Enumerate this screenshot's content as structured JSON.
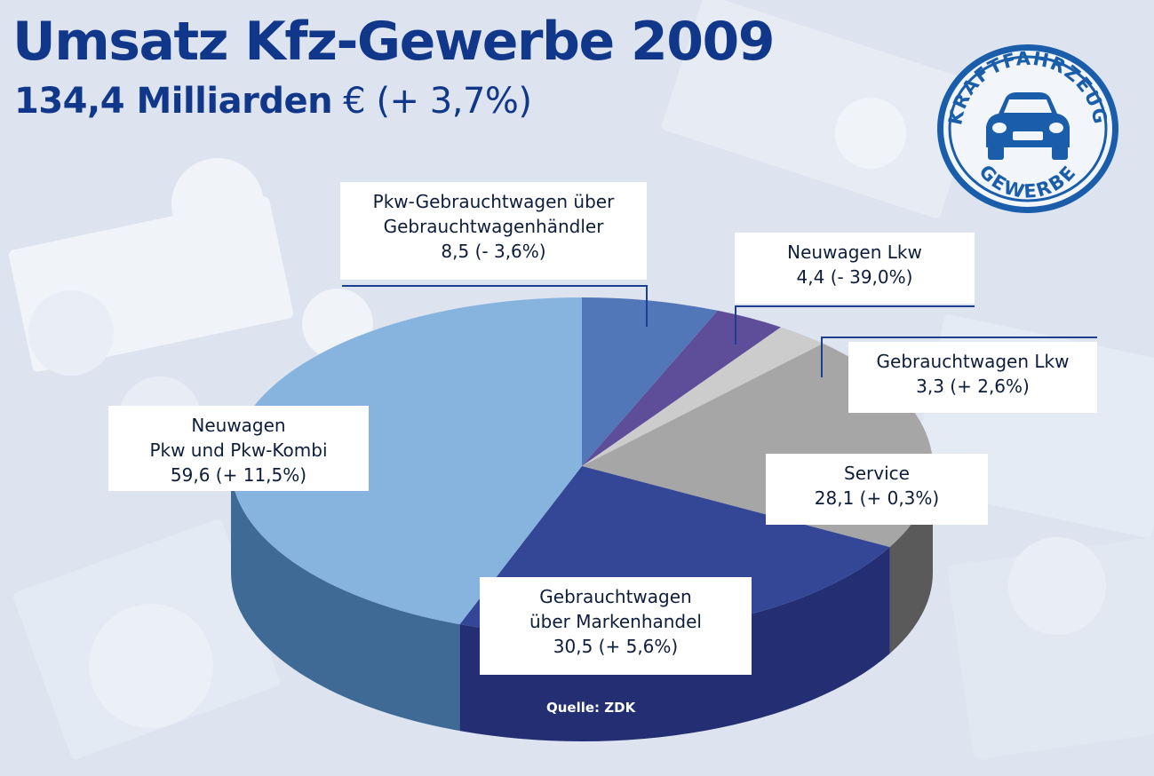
{
  "header": {
    "title": "Umsatz Kfz-Gewerbe 2009",
    "subtitle_bold": "134,4 Milliarden",
    "subtitle_rest": " € (+ 3,7%)"
  },
  "logo": {
    "top_text": "KRAFTFAHRZEUG",
    "bottom_text": "GEWERBE",
    "icon": "car-icon",
    "color": "#1a5eab"
  },
  "source": "Quelle: ZDK",
  "chart_data": {
    "type": "pie",
    "title": "Umsatz Kfz-Gewerbe 2009",
    "subtitle": "134,4 Milliarden € (+ 3,7%)",
    "total": 134.4,
    "slices": [
      {
        "label": "Pkw-Gebrauchtwagen über Gebrauchtwagenhändler",
        "value": 8.5,
        "change": "- 3,6%",
        "color": "#5277b8",
        "side": "#3c5d96"
      },
      {
        "label": "Neuwagen Lkw",
        "value": 4.4,
        "change": "- 39,0%",
        "color": "#5e4e9a",
        "side": "#473a78"
      },
      {
        "label": "Gebrauchtwagen Lkw",
        "value": 3.3,
        "change": "+ 2,6%",
        "color": "#cccccc",
        "side": "#9a9a9a"
      },
      {
        "label": "Service",
        "value": 28.1,
        "change": "+ 0,3%",
        "color": "#a6a6a6",
        "side": "#5a5a5a"
      },
      {
        "label": "Gebrauchtwagen über Markenhandel",
        "value": 30.5,
        "change": "+ 5,6%",
        "color": "#334796",
        "side": "#232f72"
      },
      {
        "label": "Neuwagen Pkw und Pkw-Kombi",
        "value": 59.6,
        "change": "+ 11,5%",
        "color": "#86b4df",
        "side": "#3e6a95"
      }
    ],
    "labels": [
      {
        "lines": [
          "Pkw-Gebrauchtwagen über",
          "Gebrauchtwagenhändler",
          "8,5 (- 3,6%)"
        ]
      },
      {
        "lines": [
          "Neuwagen Lkw",
          "4,4 (- 39,0%)"
        ]
      },
      {
        "lines": [
          "Gebrauchtwagen Lkw",
          "3,3 (+ 2,6%)"
        ]
      },
      {
        "lines": [
          "Service",
          "28,1 (+ 0,3%)"
        ]
      },
      {
        "lines": [
          "Gebrauchtwagen",
          "über Markenhandel",
          "30,5 (+ 5,6%)"
        ]
      },
      {
        "lines": [
          "Neuwagen",
          "Pkw und Pkw-Kombi",
          "59,6 (+ 11,5%)"
        ]
      }
    ]
  }
}
